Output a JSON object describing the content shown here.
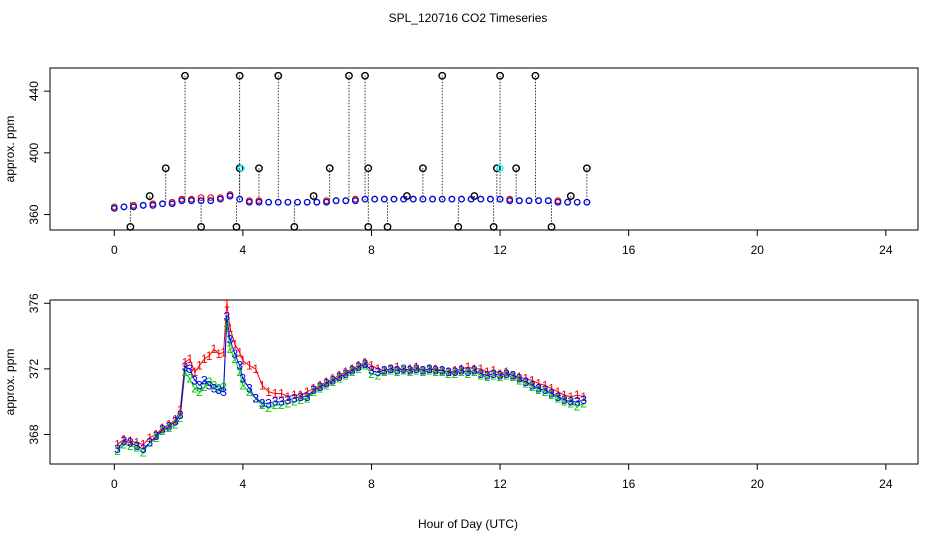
{
  "title": "SPL_120716  CO2 Timeseries",
  "xlabel": "Hour of Day (UTC)",
  "colors": {
    "series1": "#ff0000",
    "series2": "#00cc00",
    "series3": "#0000ff",
    "highlight": "#00ffff",
    "axis": "#000000"
  },
  "chart_data": [
    {
      "type": "scatter",
      "ylabel": "approx. ppm",
      "xlim": [
        -2,
        25
      ],
      "ylim": [
        350,
        455
      ],
      "xticks": [
        0,
        4,
        8,
        12,
        16,
        20,
        24
      ],
      "yticks": [
        360,
        400,
        440
      ],
      "x": [
        0.0,
        0.3,
        0.6,
        0.9,
        1.2,
        1.5,
        1.8,
        2.1,
        2.4,
        2.7,
        3.0,
        3.3,
        3.6,
        3.9,
        4.2,
        4.5,
        4.8,
        5.1,
        5.4,
        5.7,
        6.0,
        6.3,
        6.6,
        6.9,
        7.2,
        7.5,
        7.8,
        8.1,
        8.4,
        8.7,
        9.0,
        9.3,
        9.6,
        9.9,
        10.2,
        10.5,
        10.8,
        11.1,
        11.4,
        11.7,
        12.0,
        12.3,
        12.6,
        12.9,
        13.2,
        13.5,
        13.8,
        14.1,
        14.4,
        14.7
      ],
      "series": [
        {
          "name": "1",
          "values": [
            365,
            365,
            366,
            366,
            367,
            367,
            368,
            370,
            370,
            371,
            371,
            371,
            373,
            370,
            369,
            369,
            368,
            368,
            368,
            368,
            368,
            368,
            369,
            369,
            369,
            370,
            370,
            370,
            370,
            370,
            370,
            370,
            370,
            370,
            370,
            370,
            370,
            370,
            370,
            370,
            370,
            370,
            369,
            369,
            369,
            369,
            369,
            368,
            368,
            368
          ]
        },
        {
          "name": "2",
          "values": [
            364,
            365,
            365,
            366,
            366,
            367,
            367,
            369,
            369,
            369,
            369,
            370,
            372,
            370,
            368,
            368,
            368,
            368,
            368,
            368,
            368,
            368,
            368,
            369,
            369,
            369,
            370,
            370,
            370,
            370,
            370,
            370,
            370,
            370,
            370,
            370,
            370,
            370,
            370,
            370,
            370,
            369,
            369,
            369,
            369,
            369,
            368,
            368,
            368,
            368
          ]
        },
        {
          "name": "3",
          "values": [
            364,
            365,
            365,
            366,
            366,
            367,
            367,
            369,
            369,
            369,
            369,
            370,
            372,
            370,
            368,
            368,
            368,
            368,
            368,
            368,
            368,
            368,
            368,
            369,
            369,
            369,
            370,
            370,
            370,
            370,
            370,
            370,
            370,
            370,
            370,
            370,
            370,
            370,
            370,
            370,
            370,
            369,
            369,
            369,
            369,
            369,
            368,
            368,
            368,
            368
          ]
        }
      ],
      "outliers": [
        {
          "x": 2.2,
          "y": 450
        },
        {
          "x": 3.9,
          "y": 450
        },
        {
          "x": 5.1,
          "y": 450
        },
        {
          "x": 7.3,
          "y": 450
        },
        {
          "x": 7.8,
          "y": 450
        },
        {
          "x": 10.2,
          "y": 450
        },
        {
          "x": 12.0,
          "y": 450
        },
        {
          "x": 13.1,
          "y": 450
        },
        {
          "x": 1.6,
          "y": 390
        },
        {
          "x": 3.9,
          "y": 390
        },
        {
          "x": 4.5,
          "y": 390
        },
        {
          "x": 6.7,
          "y": 390
        },
        {
          "x": 7.9,
          "y": 390
        },
        {
          "x": 9.6,
          "y": 390
        },
        {
          "x": 11.9,
          "y": 390
        },
        {
          "x": 12.5,
          "y": 390
        },
        {
          "x": 14.7,
          "y": 390
        },
        {
          "x": 1.1,
          "y": 372
        },
        {
          "x": 6.2,
          "y": 372
        },
        {
          "x": 9.1,
          "y": 372
        },
        {
          "x": 11.2,
          "y": 372
        },
        {
          "x": 14.2,
          "y": 372
        },
        {
          "x": 0.5,
          "y": 352
        },
        {
          "x": 2.7,
          "y": 352
        },
        {
          "x": 3.8,
          "y": 352
        },
        {
          "x": 5.6,
          "y": 352
        },
        {
          "x": 7.9,
          "y": 352
        },
        {
          "x": 8.5,
          "y": 352
        },
        {
          "x": 10.7,
          "y": 352
        },
        {
          "x": 11.8,
          "y": 352
        },
        {
          "x": 13.6,
          "y": 352
        }
      ]
    },
    {
      "type": "line",
      "ylabel": "approx. ppm",
      "xlim": [
        -2,
        25
      ],
      "ylim": [
        366.2,
        376.2
      ],
      "xticks": [
        0,
        4,
        8,
        12,
        16,
        20,
        24
      ],
      "yticks": [
        368,
        372,
        376
      ],
      "x": [
        0.1,
        0.3,
        0.5,
        0.7,
        0.9,
        1.1,
        1.3,
        1.5,
        1.7,
        1.9,
        2.05,
        2.2,
        2.35,
        2.5,
        2.65,
        2.8,
        2.95,
        3.1,
        3.25,
        3.4,
        3.5,
        3.6,
        3.75,
        3.9,
        4.0,
        4.2,
        4.4,
        4.6,
        4.8,
        5.0,
        5.2,
        5.4,
        5.6,
        5.8,
        6.0,
        6.2,
        6.4,
        6.6,
        6.8,
        7.0,
        7.2,
        7.4,
        7.6,
        7.8,
        8.0,
        8.2,
        8.4,
        8.6,
        8.8,
        9.0,
        9.2,
        9.4,
        9.6,
        9.8,
        10.0,
        10.2,
        10.4,
        10.6,
        10.8,
        11.0,
        11.2,
        11.4,
        11.6,
        11.8,
        12.0,
        12.2,
        12.4,
        12.6,
        12.8,
        13.0,
        13.2,
        13.4,
        13.6,
        13.8,
        14.0,
        14.2,
        14.4,
        14.6
      ],
      "series": [
        {
          "name": "1",
          "values": [
            367.4,
            367.7,
            367.6,
            367.5,
            367.4,
            367.8,
            368.0,
            368.4,
            368.6,
            368.9,
            369.5,
            372.4,
            372.6,
            371.8,
            372.2,
            372.6,
            372.8,
            373.2,
            372.9,
            373.0,
            376.0,
            374.5,
            373.5,
            373.0,
            372.5,
            372.2,
            372.0,
            371.0,
            370.6,
            370.5,
            370.5,
            370.3,
            370.4,
            370.4,
            370.6,
            370.8,
            371.0,
            371.2,
            371.4,
            371.6,
            371.8,
            372.0,
            372.2,
            372.4,
            372.2,
            372.0,
            371.9,
            372.0,
            372.1,
            371.9,
            372.0,
            372.1,
            371.9,
            372.0,
            372.0,
            371.9,
            371.8,
            371.9,
            372.0,
            372.1,
            372.0,
            372.0,
            371.8,
            371.9,
            371.7,
            371.8,
            371.6,
            371.5,
            371.4,
            371.3,
            371.1,
            371.0,
            370.8,
            370.6,
            370.4,
            370.3,
            370.4,
            370.3
          ]
        },
        {
          "name": "2",
          "values": [
            367.0,
            367.4,
            367.3,
            367.2,
            366.9,
            367.5,
            367.8,
            368.2,
            368.4,
            368.6,
            369.0,
            371.8,
            371.4,
            370.8,
            370.6,
            370.9,
            371.2,
            371.0,
            370.8,
            370.9,
            374.8,
            373.2,
            372.6,
            371.8,
            371.0,
            370.6,
            370.2,
            369.8,
            369.6,
            369.8,
            369.8,
            369.9,
            370.0,
            370.1,
            370.2,
            370.6,
            370.8,
            371.0,
            371.2,
            371.4,
            371.6,
            371.8,
            372.0,
            372.2,
            371.7,
            371.6,
            371.8,
            371.9,
            371.8,
            371.9,
            371.8,
            371.9,
            371.8,
            371.9,
            371.8,
            371.8,
            371.7,
            371.7,
            371.8,
            371.7,
            371.8,
            371.6,
            371.5,
            371.6,
            371.5,
            371.6,
            371.5,
            371.3,
            371.1,
            370.9,
            370.7,
            370.6,
            370.4,
            370.2,
            370.0,
            369.9,
            369.7,
            369.9
          ]
        },
        {
          "name": "3",
          "values": [
            367.1,
            367.6,
            367.5,
            367.3,
            367.1,
            367.5,
            367.9,
            368.3,
            368.5,
            368.8,
            369.2,
            372.1,
            372.0,
            371.3,
            371.0,
            371.3,
            371.0,
            370.8,
            370.7,
            370.6,
            375.2,
            373.8,
            372.9,
            372.2,
            371.4,
            370.8,
            370.2,
            369.9,
            369.9,
            370.0,
            370.0,
            370.1,
            370.2,
            370.3,
            370.3,
            370.7,
            370.9,
            371.1,
            371.3,
            371.5,
            371.7,
            371.9,
            372.1,
            372.3,
            371.9,
            371.8,
            371.9,
            372.0,
            371.9,
            372.0,
            371.9,
            372.0,
            371.9,
            372.0,
            371.9,
            371.9,
            371.8,
            371.8,
            371.9,
            371.8,
            371.9,
            371.7,
            371.6,
            371.7,
            371.6,
            371.7,
            371.6,
            371.4,
            371.2,
            371.0,
            370.8,
            370.7,
            370.5,
            370.3,
            370.1,
            370.0,
            370.0,
            370.1
          ]
        }
      ]
    }
  ]
}
